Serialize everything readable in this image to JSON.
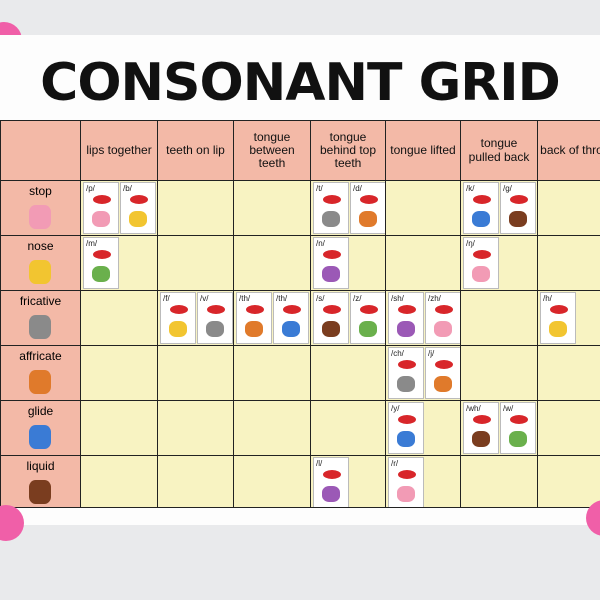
{
  "title": "CONSONANT GRID",
  "table": {
    "columns": [
      "lips together",
      "teeth on lip",
      "tongue between teeth",
      "tongue behind top teeth",
      "tongue lifted",
      "tongue pulled back",
      "back of throat"
    ],
    "rows": [
      {
        "label": "stop",
        "cells": [
          [
            "/p/",
            "/b/"
          ],
          [],
          [],
          [
            "/t/",
            "/d/"
          ],
          [],
          [
            "/k/",
            "/g/"
          ],
          []
        ]
      },
      {
        "label": "nose",
        "cells": [
          [
            "/m/"
          ],
          [],
          [],
          [
            "/n/"
          ],
          [],
          [
            "/ŋ/"
          ],
          []
        ]
      },
      {
        "label": "fricative",
        "cells": [
          [],
          [
            "/f/",
            "/v/"
          ],
          [
            "/th/",
            "/th/"
          ],
          [
            "/s/",
            "/z/"
          ],
          [
            "/sh/",
            "/zh/"
          ],
          [],
          [
            "/h/"
          ]
        ]
      },
      {
        "label": "affricate",
        "cells": [
          [],
          [],
          [],
          [],
          [
            "/ch/",
            "/j/"
          ],
          [],
          []
        ]
      },
      {
        "label": "glide",
        "cells": [
          [],
          [],
          [],
          [],
          [
            "/y/"
          ],
          [
            "/wh/",
            "/w/"
          ],
          []
        ]
      },
      {
        "label": "liquid",
        "cells": [
          [],
          [],
          [],
          [
            "/l/"
          ],
          [
            "/r/"
          ],
          [],
          []
        ]
      }
    ]
  }
}
